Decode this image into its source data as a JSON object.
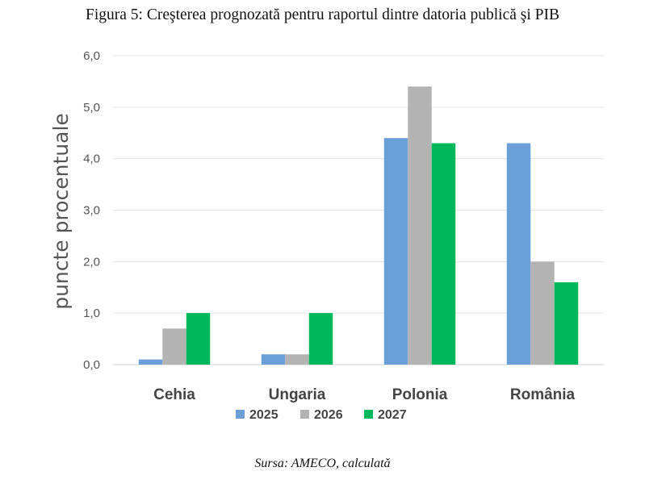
{
  "figure": {
    "title": "Figura 5: Creşterea prognozată pentru raportul dintre datoria publică şi PIB",
    "source": "Sursa: AMECO, calculată"
  },
  "chart_data": {
    "type": "bar",
    "title": "",
    "xlabel": "",
    "ylabel": "puncte procentuale",
    "ylim": [
      0,
      6
    ],
    "yticks": [
      "0,0",
      "1,0",
      "2,0",
      "3,0",
      "4,0",
      "5,0",
      "6,0"
    ],
    "categories": [
      "Cehia",
      "Ungaria",
      "Polonia",
      "România"
    ],
    "series": [
      {
        "name": "2025",
        "color": "#6a9fd8",
        "values": [
          0.1,
          0.2,
          4.4,
          4.3
        ]
      },
      {
        "name": "2026",
        "color": "#b3b3b3",
        "values": [
          0.7,
          0.2,
          5.4,
          2.0
        ]
      },
      {
        "name": "2027",
        "color": "#00b85c",
        "values": [
          1.0,
          1.0,
          4.3,
          1.6
        ]
      }
    ],
    "grid": true,
    "legend": "bottom"
  }
}
